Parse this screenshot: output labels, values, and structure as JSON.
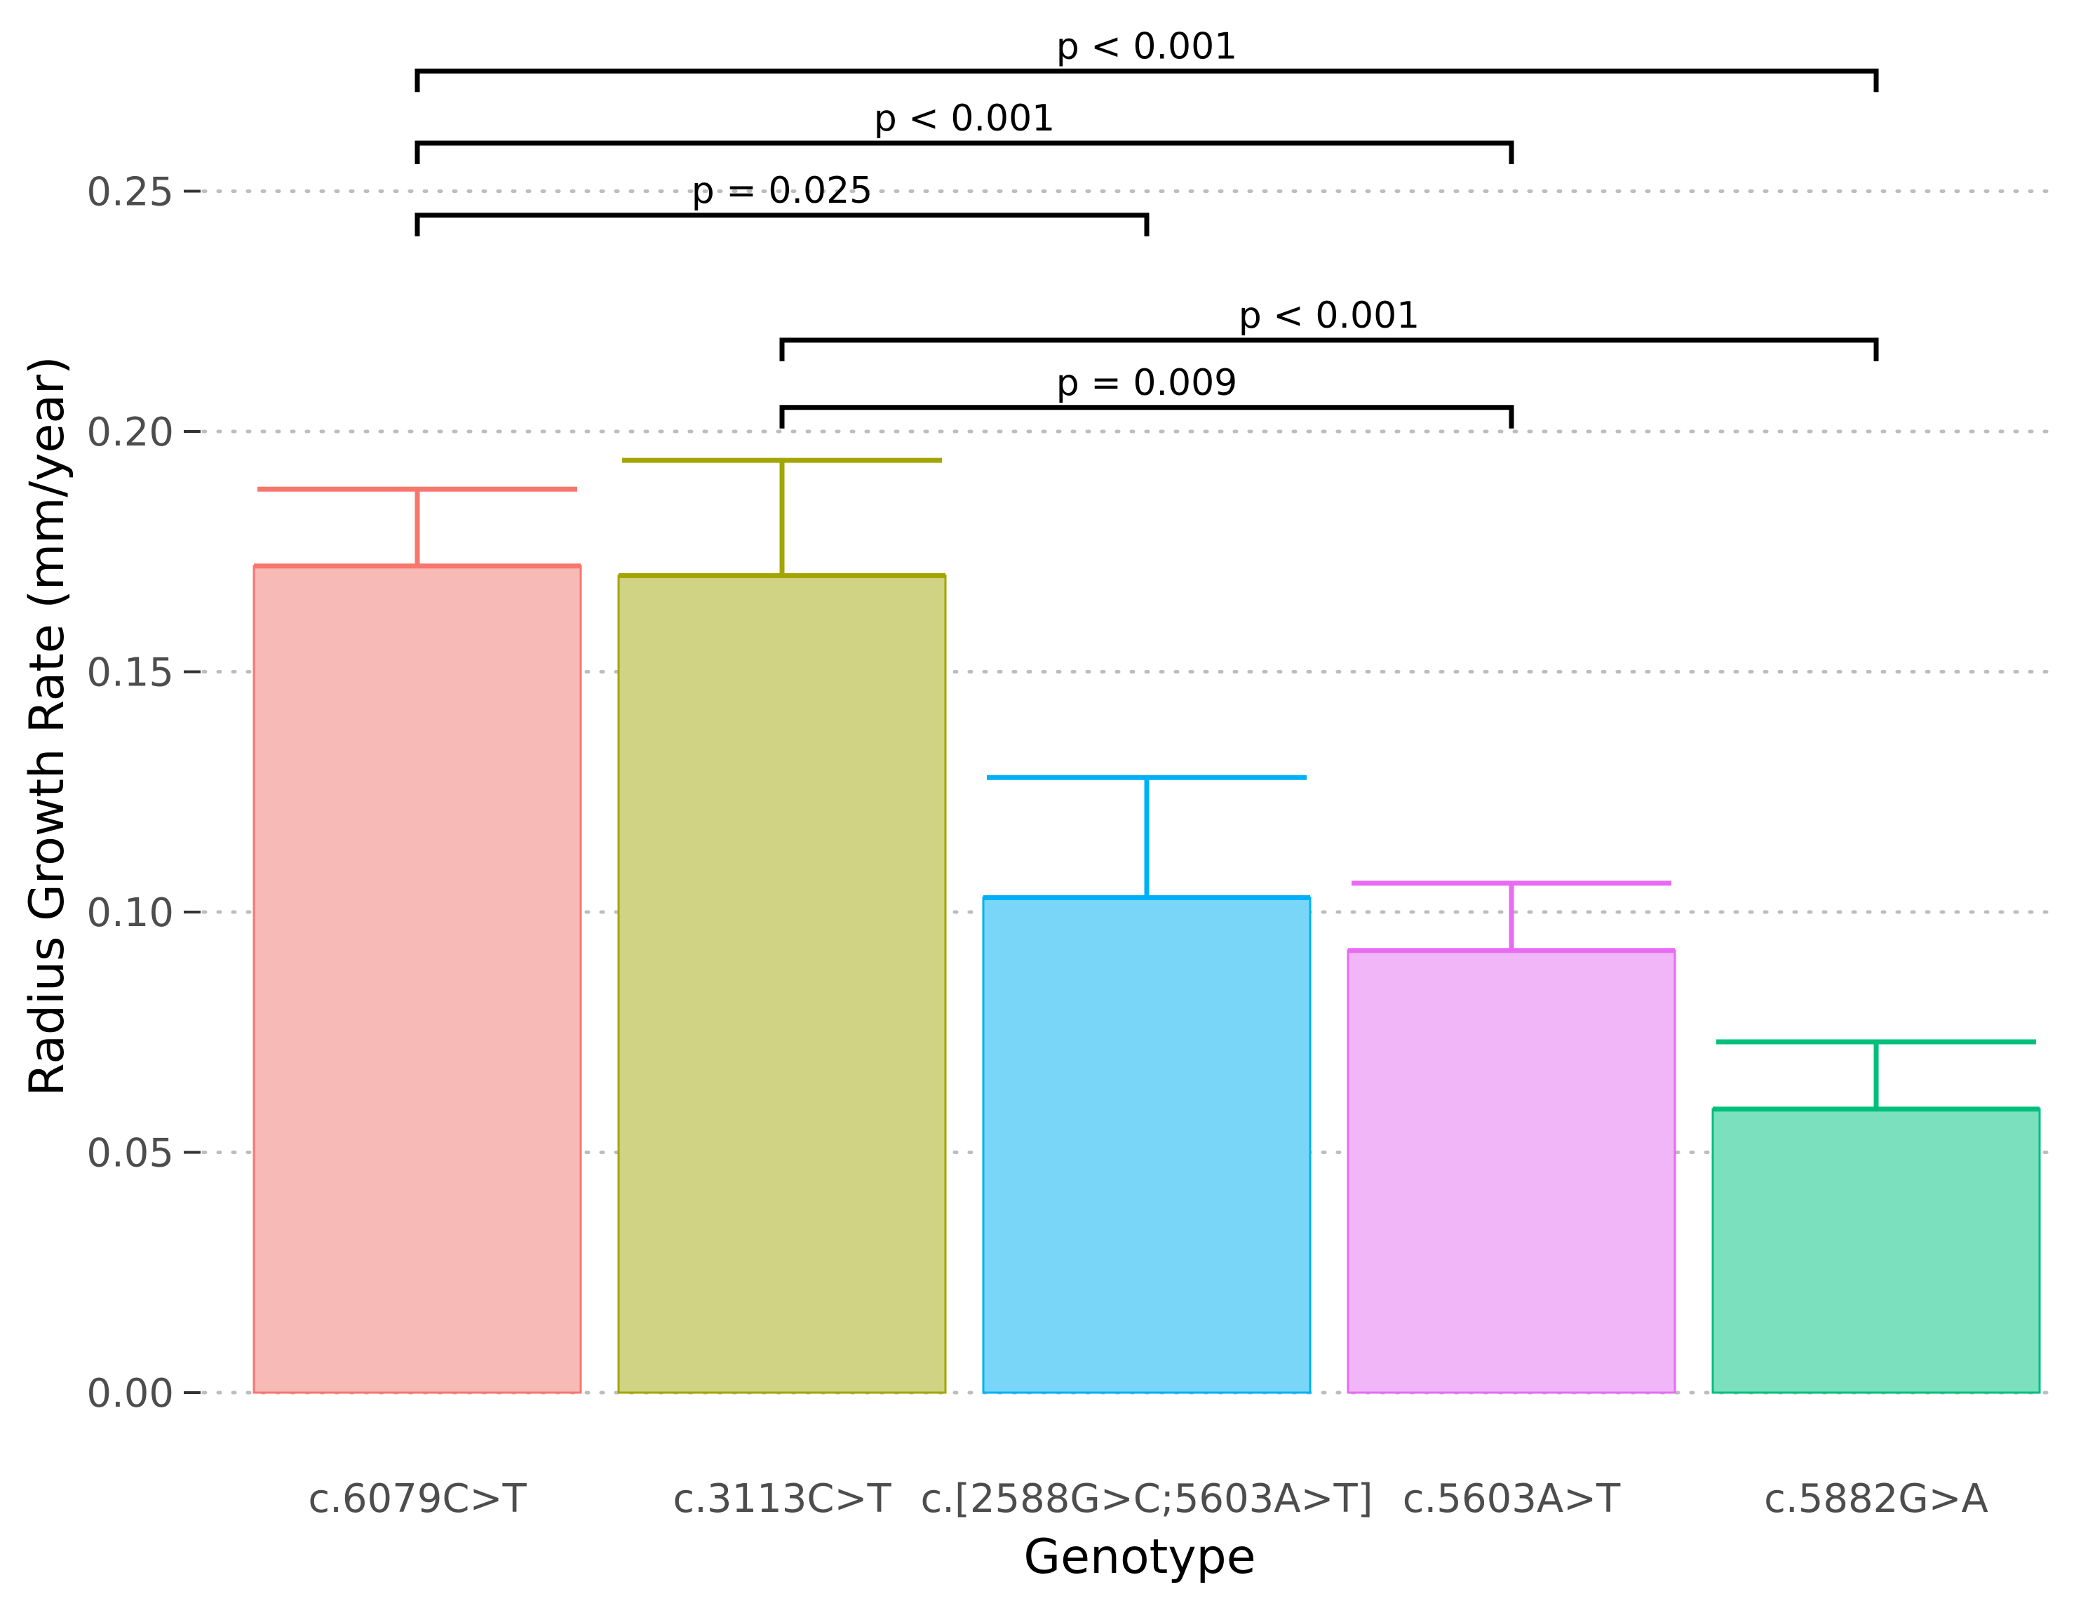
{
  "chart_data": {
    "type": "bar",
    "title": "",
    "xlabel": "Genotype",
    "ylabel": "Radius Growth Rate (mm/year)",
    "ylim": [
      0,
      0.27
    ],
    "yticks": [
      0.0,
      0.05,
      0.1,
      0.15,
      0.2,
      0.25
    ],
    "ytick_labels": [
      "0.00",
      "0.05",
      "0.10",
      "0.15",
      "0.20",
      "0.25"
    ],
    "grid": "horizontal-dotted",
    "legend": "none",
    "categories": [
      "c.6079C>T",
      "c.3113C>T",
      "c.[2588G>C;5603A>T]",
      "c.5603A>T",
      "c.5882G>A"
    ],
    "values": [
      0.172,
      0.17,
      0.103,
      0.092,
      0.059
    ],
    "error_upper": [
      0.188,
      0.194,
      0.128,
      0.106,
      0.073
    ],
    "colors": [
      "#F8766D",
      "#A3A500",
      "#00B0F6",
      "#E76BF3",
      "#00BF7D"
    ],
    "fill_colors": [
      "#F7BAB6",
      "#D0D284",
      "#7AD6F8",
      "#F0B6F8",
      "#7BE0BE"
    ],
    "comparisons": [
      {
        "from": 0,
        "to": 4,
        "label": "p < 0.001",
        "level": 0.275
      },
      {
        "from": 0,
        "to": 3,
        "label": "p < 0.001",
        "level": 0.26
      },
      {
        "from": 0,
        "to": 2,
        "label": "p = 0.025",
        "level": 0.245
      },
      {
        "from": 1,
        "to": 4,
        "label": "p < 0.001",
        "level": 0.219
      },
      {
        "from": 1,
        "to": 3,
        "label": "p = 0.009",
        "level": 0.205
      }
    ]
  }
}
